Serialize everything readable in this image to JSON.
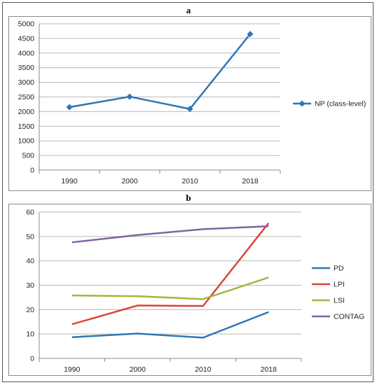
{
  "chart_data": [
    {
      "type": "line",
      "title": "a",
      "categories": [
        "1990",
        "2000",
        "2010",
        "2018"
      ],
      "ylim": [
        0,
        5000
      ],
      "yticks": [
        0,
        500,
        1000,
        1500,
        2000,
        2500,
        3000,
        3500,
        4000,
        4500,
        5000
      ],
      "grid": true,
      "legend_position": "right",
      "series": [
        {
          "name": "NP (class-level)",
          "color": "#2e75b6",
          "marker": "diamond",
          "values": [
            2150,
            2510,
            2090,
            4650
          ]
        }
      ]
    },
    {
      "type": "line",
      "title": "b",
      "categories": [
        "1990",
        "2000",
        "2010",
        "2018"
      ],
      "ylim": [
        0,
        60
      ],
      "yticks": [
        0,
        10,
        20,
        30,
        40,
        50,
        60
      ],
      "grid": true,
      "legend_position": "right",
      "series": [
        {
          "name": "PD",
          "color": "#2e75b6",
          "values": [
            8.7,
            10.2,
            8.5,
            19.0
          ]
        },
        {
          "name": "LPI",
          "color": "#d9443a",
          "values": [
            14.0,
            21.7,
            21.5,
            55.5
          ]
        },
        {
          "name": "LSI",
          "color": "#9bbb3b",
          "values": [
            25.8,
            25.5,
            24.3,
            33.2
          ]
        },
        {
          "name": "CONTAG",
          "color": "#8064a2",
          "values": [
            47.6,
            50.6,
            53.0,
            54.2
          ]
        }
      ]
    }
  ]
}
